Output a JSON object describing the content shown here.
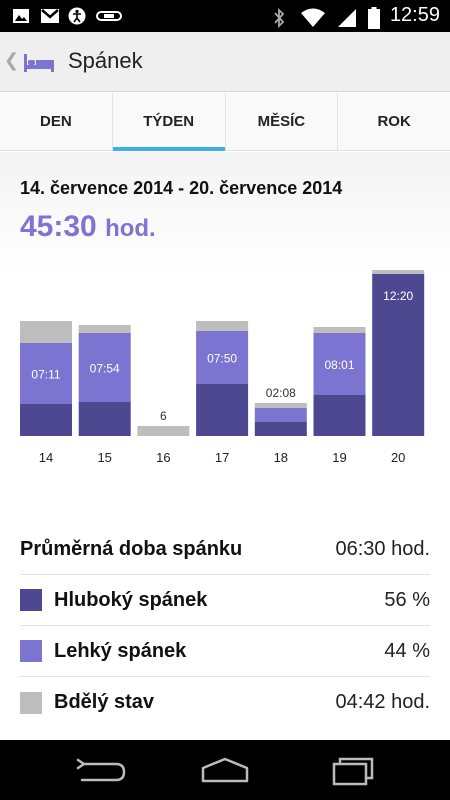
{
  "status_bar": {
    "time": "12:59",
    "left_icons": [
      "image-icon",
      "gmail-icon",
      "accessibility-icon",
      "fitness-band-icon"
    ],
    "right_icons": [
      "bluetooth-icon",
      "wifi-icon",
      "signal-icon",
      "battery-icon"
    ]
  },
  "action_bar": {
    "title": "Spánek",
    "icon": "bed-icon"
  },
  "tabs": [
    {
      "label": "DEN",
      "active": false
    },
    {
      "label": "TÝDEN",
      "active": true
    },
    {
      "label": "MĚSÍC",
      "active": false
    },
    {
      "label": "ROK",
      "active": false
    }
  ],
  "summary": {
    "date_range": "14. července 2014 - 20. července 2014",
    "total_time": "45:30",
    "total_unit": "hod."
  },
  "chart_data": {
    "type": "bar",
    "stacked": true,
    "categories": [
      "14",
      "15",
      "16",
      "17",
      "18",
      "19",
      "20"
    ],
    "series": [
      {
        "color": "#4e4890",
        "values": [
          32,
          34,
          0,
          52,
          14,
          41,
          162
        ]
      },
      {
        "color": "#7b74d0",
        "values": [
          61,
          69,
          0,
          53,
          14,
          62,
          0
        ]
      },
      {
        "color": "#bdbdbd",
        "values": [
          22,
          8,
          10,
          10,
          5,
          6,
          4
        ]
      }
    ],
    "bar_labels": [
      "07:11",
      "07:54",
      "6",
      "07:50",
      "02:08",
      "08:01",
      "12:20"
    ]
  },
  "stats": [
    {
      "label": "Průměrná doba spánku",
      "value": "06:30 hod.",
      "swatch": null
    },
    {
      "label": "Hluboký spánek",
      "value": "56 %",
      "swatch": "#4e4890"
    },
    {
      "label": "Lehký spánek",
      "value": "44 %",
      "swatch": "#7b74d0"
    },
    {
      "label": "Bdělý stav",
      "value": "04:42 hod.",
      "swatch": "#bdbdbd"
    }
  ],
  "nav_bar": {
    "buttons": [
      "back-icon",
      "home-icon",
      "recent-apps-icon"
    ]
  }
}
